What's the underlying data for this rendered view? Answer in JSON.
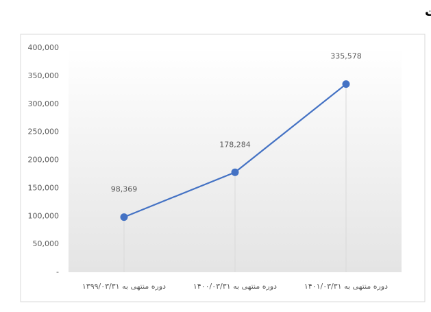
{
  "chart_data": {
    "type": "line",
    "title": "بهای تمام شده خدمات",
    "categories": [
      "دوره منتهی به ۱۳۹۹/۰۳/۳۱",
      "دوره منتهی به ۱۴۰۰/۰۳/۳۱",
      "دوره منتهی به ۱۴۰۱/۰۳/۳۱"
    ],
    "values": [
      98369,
      178284,
      335578
    ],
    "value_labels": [
      "98,369",
      "178,284",
      "335,578"
    ],
    "color": "#4472c4",
    "ylim": [
      0,
      400000
    ],
    "yticks": [
      {
        "value": 0,
        "label": "-"
      },
      {
        "value": 50000,
        "label": "50,000"
      },
      {
        "value": 100000,
        "label": "100,000"
      },
      {
        "value": 150000,
        "label": "150,000"
      },
      {
        "value": 200000,
        "label": "200,000"
      },
      {
        "value": 250000,
        "label": "250,000"
      },
      {
        "value": 300000,
        "label": "300,000"
      },
      {
        "value": 350000,
        "label": "350,000"
      },
      {
        "value": 400000,
        "label": "400,000"
      }
    ],
    "drop_lines": true
  }
}
